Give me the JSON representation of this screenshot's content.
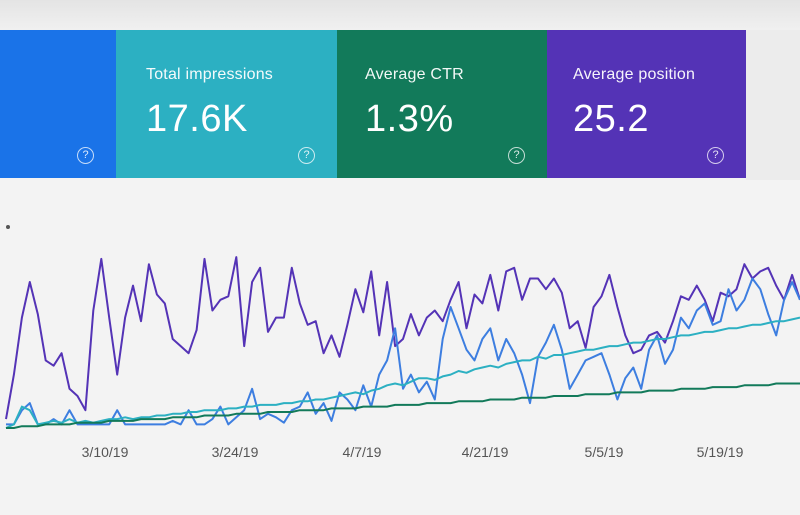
{
  "summary_cards": [
    {
      "id": "clicks",
      "label": "",
      "value": "",
      "color": "#1a73e8"
    },
    {
      "id": "impressions",
      "label": "Total impressions",
      "value": "17.6K",
      "color": "#2cb0c2"
    },
    {
      "id": "ctr",
      "label": "Average CTR",
      "value": "1.3%",
      "color": "#127a5a"
    },
    {
      "id": "position",
      "label": "Average position",
      "value": "25.2",
      "color": "#5433b6"
    }
  ],
  "help_icon_glyph": "?",
  "chart_data": {
    "type": "line",
    "title": "",
    "xlabel": "",
    "ylabel": "",
    "x_tick_labels": [
      "3/10/19",
      "3/24/19",
      "4/7/19",
      "4/21/19",
      "5/5/19",
      "5/19/19"
    ],
    "grid": false,
    "series": [
      {
        "color": "#5433b6",
        "values": [
          0.05,
          0.3,
          0.62,
          0.82,
          0.64,
          0.38,
          0.35,
          0.42,
          0.22,
          0.18,
          0.1,
          0.66,
          0.95,
          0.62,
          0.3,
          0.62,
          0.8,
          0.6,
          0.92,
          0.75,
          0.7,
          0.5,
          0.46,
          0.42,
          0.55,
          0.95,
          0.66,
          0.72,
          0.74,
          0.96,
          0.46,
          0.82,
          0.9,
          0.54,
          0.62,
          0.62,
          0.9,
          0.7,
          0.58,
          0.6,
          0.42,
          0.52,
          0.4,
          0.58,
          0.78,
          0.65,
          0.88,
          0.52,
          0.82,
          0.46,
          0.5,
          0.64,
          0.52,
          0.62,
          0.66,
          0.6,
          0.72,
          0.82,
          0.56,
          0.75,
          0.7,
          0.86,
          0.66,
          0.88,
          0.9,
          0.72,
          0.84,
          0.84,
          0.78,
          0.84,
          0.76,
          0.56,
          0.6,
          0.45,
          0.68,
          0.74,
          0.86,
          0.68,
          0.52,
          0.42,
          0.44,
          0.52,
          0.54,
          0.48,
          0.6,
          0.74,
          0.72,
          0.8,
          0.72,
          0.6,
          0.76,
          0.74,
          0.78,
          0.92,
          0.84,
          0.88,
          0.9,
          0.8,
          0.72,
          0.86,
          0.72
        ]
      },
      {
        "color": "#3d7ee0",
        "values": [
          0.02,
          0.02,
          0.1,
          0.14,
          0.02,
          0.02,
          0.05,
          0.02,
          0.1,
          0.02,
          0.02,
          0.02,
          0.02,
          0.02,
          0.1,
          0.02,
          0.02,
          0.02,
          0.02,
          0.02,
          0.02,
          0.04,
          0.02,
          0.1,
          0.02,
          0.02,
          0.05,
          0.12,
          0.02,
          0.06,
          0.1,
          0.22,
          0.05,
          0.08,
          0.06,
          0.03,
          0.1,
          0.12,
          0.2,
          0.08,
          0.14,
          0.04,
          0.2,
          0.16,
          0.1,
          0.24,
          0.12,
          0.3,
          0.38,
          0.56,
          0.22,
          0.3,
          0.2,
          0.26,
          0.16,
          0.5,
          0.68,
          0.56,
          0.44,
          0.38,
          0.5,
          0.56,
          0.38,
          0.5,
          0.42,
          0.3,
          0.14,
          0.4,
          0.48,
          0.58,
          0.44,
          0.22,
          0.3,
          0.38,
          0.4,
          0.42,
          0.3,
          0.16,
          0.28,
          0.34,
          0.22,
          0.44,
          0.52,
          0.36,
          0.44,
          0.62,
          0.56,
          0.66,
          0.7,
          0.58,
          0.6,
          0.78,
          0.66,
          0.72,
          0.84,
          0.78,
          0.64,
          0.52,
          0.72,
          0.82,
          0.72
        ]
      },
      {
        "color": "#2cb0c2",
        "values": [
          0.0,
          0.02,
          0.12,
          0.1,
          0.02,
          0.03,
          0.04,
          0.03,
          0.05,
          0.03,
          0.04,
          0.03,
          0.04,
          0.05,
          0.05,
          0.06,
          0.05,
          0.06,
          0.06,
          0.07,
          0.07,
          0.08,
          0.08,
          0.09,
          0.09,
          0.1,
          0.1,
          0.1,
          0.11,
          0.11,
          0.12,
          0.12,
          0.13,
          0.13,
          0.13,
          0.14,
          0.14,
          0.15,
          0.15,
          0.16,
          0.16,
          0.17,
          0.18,
          0.19,
          0.2,
          0.19,
          0.21,
          0.22,
          0.24,
          0.25,
          0.24,
          0.26,
          0.28,
          0.28,
          0.27,
          0.29,
          0.3,
          0.32,
          0.31,
          0.33,
          0.34,
          0.35,
          0.34,
          0.36,
          0.37,
          0.38,
          0.38,
          0.4,
          0.39,
          0.41,
          0.41,
          0.42,
          0.43,
          0.44,
          0.44,
          0.45,
          0.46,
          0.46,
          0.47,
          0.48,
          0.48,
          0.49,
          0.5,
          0.5,
          0.51,
          0.52,
          0.52,
          0.53,
          0.54,
          0.54,
          0.55,
          0.56,
          0.56,
          0.57,
          0.58,
          0.58,
          0.59,
          0.6,
          0.6,
          0.61,
          0.62
        ]
      },
      {
        "color": "#127a5a",
        "values": [
          0.0,
          0.0,
          0.01,
          0.01,
          0.01,
          0.02,
          0.02,
          0.02,
          0.02,
          0.03,
          0.03,
          0.03,
          0.03,
          0.04,
          0.04,
          0.04,
          0.04,
          0.05,
          0.05,
          0.05,
          0.05,
          0.06,
          0.06,
          0.06,
          0.06,
          0.07,
          0.07,
          0.07,
          0.07,
          0.08,
          0.08,
          0.08,
          0.08,
          0.09,
          0.09,
          0.09,
          0.09,
          0.1,
          0.1,
          0.1,
          0.1,
          0.11,
          0.11,
          0.11,
          0.11,
          0.12,
          0.12,
          0.12,
          0.12,
          0.13,
          0.13,
          0.13,
          0.13,
          0.14,
          0.14,
          0.14,
          0.14,
          0.15,
          0.15,
          0.15,
          0.15,
          0.16,
          0.16,
          0.16,
          0.16,
          0.17,
          0.17,
          0.17,
          0.17,
          0.18,
          0.18,
          0.18,
          0.18,
          0.19,
          0.19,
          0.19,
          0.19,
          0.2,
          0.2,
          0.2,
          0.2,
          0.21,
          0.21,
          0.21,
          0.21,
          0.22,
          0.22,
          0.22,
          0.22,
          0.23,
          0.23,
          0.23,
          0.23,
          0.24,
          0.24,
          0.24,
          0.24,
          0.25,
          0.25,
          0.25,
          0.25
        ]
      }
    ]
  }
}
